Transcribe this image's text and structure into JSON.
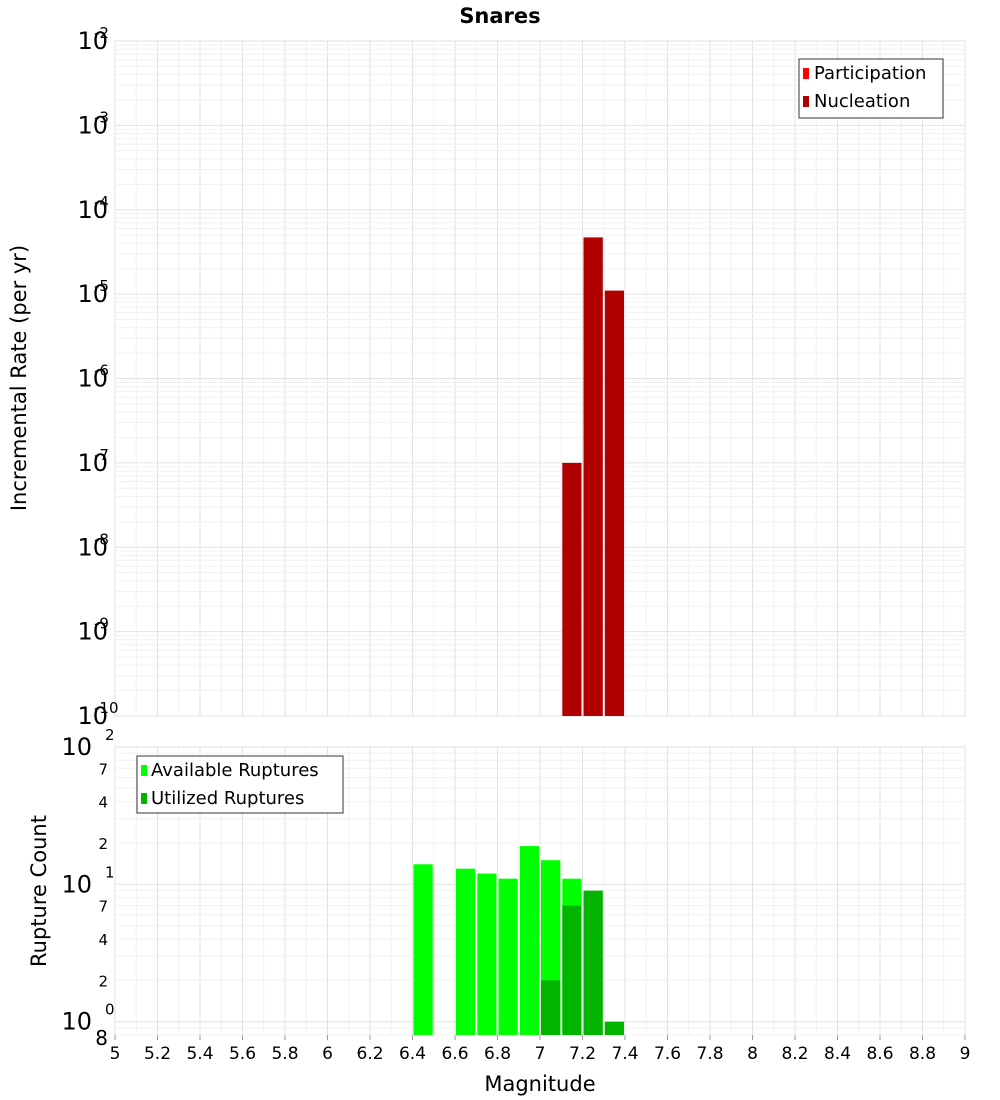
{
  "chart_data": [
    {
      "type": "bar",
      "title": "Snares",
      "xlabel": "",
      "ylabel": "Incremental Rate (per yr)",
      "yscale": "log",
      "xlim": [
        5,
        9
      ],
      "ylim": [
        1e-10,
        0.01
      ],
      "grid": true,
      "legend_position": "top-right",
      "y_tick_labels": [
        {
          "value": 1e-10,
          "base": "10",
          "exp": "-10"
        },
        {
          "value": 1e-09,
          "base": "10",
          "exp": "-9"
        },
        {
          "value": 1e-08,
          "base": "10",
          "exp": "-8"
        },
        {
          "value": 1e-07,
          "base": "10",
          "exp": "-7"
        },
        {
          "value": 1e-06,
          "base": "10",
          "exp": "-6"
        },
        {
          "value": 1e-05,
          "base": "10",
          "exp": "-5"
        },
        {
          "value": 0.0001,
          "base": "10",
          "exp": "-4"
        },
        {
          "value": 0.001,
          "base": "10",
          "exp": "-3"
        },
        {
          "value": 0.01,
          "base": "10",
          "exp": "-2"
        }
      ],
      "series": [
        {
          "name": "Participation",
          "color": "#ff0000",
          "bars": []
        },
        {
          "name": "Nucleation",
          "color": "#b00000",
          "bars": [
            {
              "x": 7.15,
              "y": 1e-07
            },
            {
              "x": 7.25,
              "y": 4.7e-05
            },
            {
              "x": 7.35,
              "y": 1.1e-05
            }
          ]
        }
      ]
    },
    {
      "type": "bar",
      "title": "",
      "xlabel": "Magnitude",
      "ylabel": "Rupture Count",
      "yscale": "log",
      "xlim": [
        5,
        9
      ],
      "ylim": [
        0.8,
        100
      ],
      "grid": true,
      "legend_position": "top-left",
      "x_ticks": [
        "5",
        "5.2",
        "5.4",
        "5.6",
        "5.8",
        "6",
        "6.2",
        "6.4",
        "6.6",
        "6.8",
        "7",
        "7.2",
        "7.4",
        "7.6",
        "7.8",
        "8",
        "8.2",
        "8.4",
        "8.6",
        "8.8",
        "9"
      ],
      "y_tick_labels": [
        {
          "value": 1,
          "base": "10",
          "exp": "0"
        },
        {
          "value": 10,
          "base": "10",
          "exp": "1"
        },
        {
          "value": 100,
          "base": "10",
          "exp": "2"
        }
      ],
      "y_minor_labels": [
        {
          "value": 0.8,
          "label": "8"
        },
        {
          "value": 2,
          "label": "2"
        },
        {
          "value": 4,
          "label": "4"
        },
        {
          "value": 7,
          "label": "7"
        },
        {
          "value": 20,
          "label": "2"
        },
        {
          "value": 40,
          "label": "4"
        },
        {
          "value": 70,
          "label": "7"
        }
      ],
      "series": [
        {
          "name": "Available Ruptures",
          "color": "#00ff00",
          "bars": [
            {
              "x": 6.45,
              "y": 14
            },
            {
              "x": 6.65,
              "y": 13
            },
            {
              "x": 6.75,
              "y": 12
            },
            {
              "x": 6.85,
              "y": 11
            },
            {
              "x": 6.95,
              "y": 19
            },
            {
              "x": 7.05,
              "y": 15
            },
            {
              "x": 7.15,
              "y": 11
            }
          ]
        },
        {
          "name": "Utilized Ruptures",
          "color": "#00b400",
          "bars": [
            {
              "x": 7.05,
              "y": 2
            },
            {
              "x": 7.15,
              "y": 7
            },
            {
              "x": 7.25,
              "y": 9
            },
            {
              "x": 7.35,
              "y": 1
            }
          ]
        }
      ]
    }
  ]
}
